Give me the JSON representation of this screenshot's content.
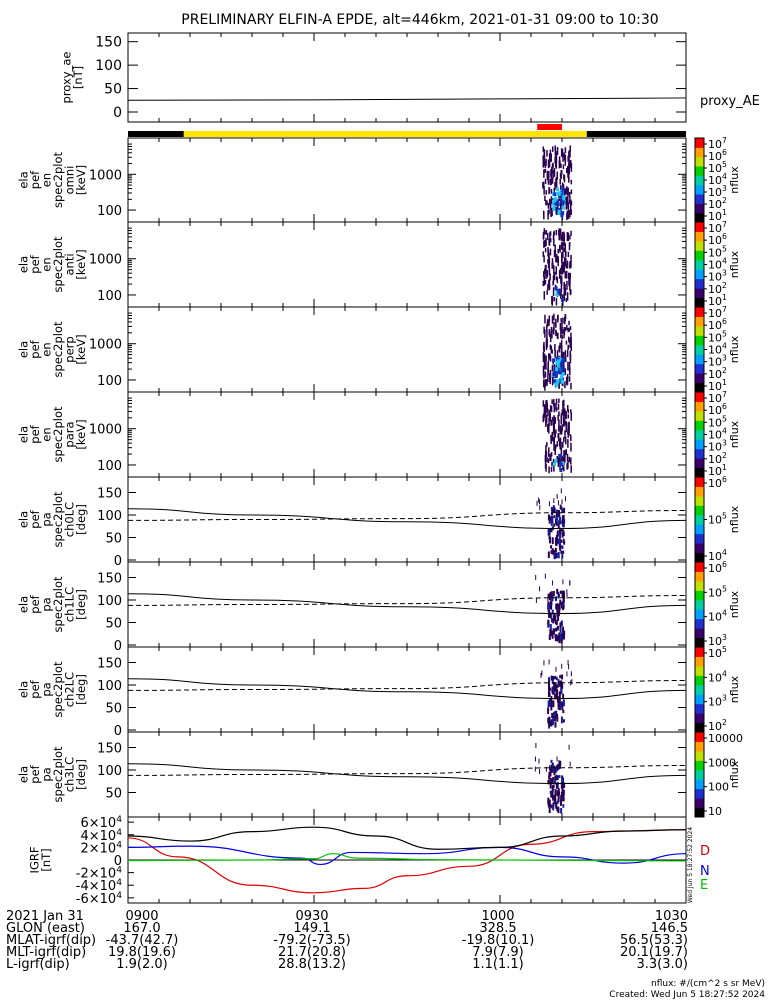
{
  "title": "PRELIMINARY ELFIN-A EPDE, alt=446km, 2021-01-31 09:00 to 10:30",
  "colors": {
    "axis": "#000000",
    "status_black": "#000000",
    "status_yellow": "#FFE400",
    "status_red": "#FF0000",
    "igrf_d": "#E00000",
    "igrf_n": "#0000E0",
    "igrf_e": "#00C000",
    "igrf_total": "#000000",
    "spec_dark": "#2A0050",
    "spec_mid": "#1030C0",
    "spec_light": "#20C8F0"
  },
  "chart_data": {
    "type": "multi-panel",
    "time_range": [
      "2021-01-31 09:00",
      "2021-01-31 10:30"
    ],
    "xticks": [
      "0900",
      "0930",
      "1000",
      "1030"
    ],
    "panels": [
      {
        "id": "proxy_ae",
        "type": "line",
        "ylabel": "proxy_ae\n[nT]",
        "yticks": [
          "0",
          "50",
          "100",
          "150"
        ],
        "ylim": [
          0,
          160
        ],
        "legend": "proxy_AE",
        "series": [
          {
            "name": "proxy_AE",
            "t": [
              0,
              30,
              60,
              90
            ],
            "values": [
              25,
              26,
              28,
              30
            ]
          }
        ]
      },
      {
        "id": "status_bar",
        "type": "bar",
        "segments": [
          {
            "t0": 0,
            "t1": 9,
            "color": "black"
          },
          {
            "t0": 9,
            "t1": 74,
            "color": "yellow"
          },
          {
            "t0": 74,
            "t1": 90,
            "color": "black"
          },
          {
            "t0": 66,
            "t1": 70,
            "color": "red"
          }
        ]
      },
      {
        "id": "en_omni",
        "type": "heatmap",
        "ylabel": "ela\npef\nen\nspec2plot\nomni\n[keV]",
        "yticks": [
          "100",
          "1000"
        ],
        "log": true,
        "cbar_ticks": [
          "10^1",
          "10^2",
          "10^3",
          "10^4",
          "10^5",
          "10^6",
          "10^7"
        ],
        "cbar_label": "nflux",
        "activity_minutes": [
          66.5,
          71.5
        ],
        "peak_flux": 100000.0
      },
      {
        "id": "en_anti",
        "type": "heatmap",
        "ylabel": "ela\npef\nen\nspec2plot\nanti\n[keV]",
        "yticks": [
          "100",
          "1000"
        ],
        "log": true,
        "cbar_ticks": [
          "10^1",
          "10^2",
          "10^3",
          "10^4",
          "10^5",
          "10^6",
          "10^7"
        ],
        "cbar_label": "nflux",
        "activity_minutes": [
          66.5,
          71.5
        ],
        "peak_flux": 1000.0
      },
      {
        "id": "en_perp",
        "type": "heatmap",
        "ylabel": "ela\npef\nen\nspec2plot\nperp\n[keV]",
        "yticks": [
          "100",
          "1000"
        ],
        "log": true,
        "cbar_ticks": [
          "10^1",
          "10^2",
          "10^3",
          "10^4",
          "10^5",
          "10^6",
          "10^7"
        ],
        "cbar_label": "nflux",
        "activity_minutes": [
          66.5,
          71.5
        ],
        "peak_flux": 100000.0
      },
      {
        "id": "en_para",
        "type": "heatmap",
        "ylabel": "ela\npef\nen\nspec2plot\npara\n[keV]",
        "yticks": [
          "100",
          "1000"
        ],
        "log": true,
        "cbar_ticks": [
          "10^1",
          "10^2",
          "10^3",
          "10^4",
          "10^5",
          "10^6",
          "10^7"
        ],
        "cbar_label": "nflux",
        "activity_minutes": [
          66.5,
          71.5
        ],
        "peak_flux": 1000.0
      },
      {
        "id": "pa_ch0",
        "type": "heatmap",
        "ylabel": "ela\npef\npa\nspec2plot\nch0LC\n[deg]",
        "yticks": [
          "0",
          "50",
          "100",
          "150"
        ],
        "ylim": [
          0,
          180
        ],
        "cbar_ticks": [
          "10^4",
          "10^5",
          "10^6"
        ],
        "cbar_label": "nflux",
        "lc_solid": [
          114,
          100,
          85,
          70,
          88
        ],
        "lc_dashed": [
          88,
          90,
          92,
          105,
          110
        ]
      },
      {
        "id": "pa_ch1",
        "type": "heatmap",
        "ylabel": "ela\npef\npa\nspec2plot\nch1LC\n[deg]",
        "yticks": [
          "0",
          "50",
          "100",
          "150"
        ],
        "ylim": [
          0,
          180
        ],
        "cbar_ticks": [
          "10^3",
          "10^4",
          "10^5",
          "10^6"
        ],
        "cbar_label": "nflux",
        "lc_solid": [
          114,
          100,
          85,
          70,
          88
        ],
        "lc_dashed": [
          88,
          90,
          92,
          105,
          110
        ]
      },
      {
        "id": "pa_ch2",
        "type": "heatmap",
        "ylabel": "ela\npef\npa\nspec2plot\nch2LC\n[deg]",
        "yticks": [
          "0",
          "50",
          "100",
          "150"
        ],
        "ylim": [
          0,
          180
        ],
        "cbar_ticks": [
          "10^2",
          "10^3",
          "10^4",
          "10^5"
        ],
        "cbar_label": "nflux",
        "lc_solid": [
          114,
          100,
          85,
          70,
          88
        ],
        "lc_dashed": [
          88,
          90,
          92,
          105,
          110
        ]
      },
      {
        "id": "pa_ch3",
        "type": "heatmap",
        "ylabel": "ela\npef\npa\nspec2plot\nch3LC\n[deg]",
        "yticks": [
          "50",
          "100",
          "150"
        ],
        "ylim": [
          0,
          180
        ],
        "cbar_ticks": [
          "10",
          "100",
          "1000",
          "10000"
        ],
        "cbar_label": "nflux",
        "lc_solid": [
          114,
          100,
          85,
          70,
          88
        ],
        "lc_dashed": [
          88,
          90,
          92,
          105,
          110
        ]
      },
      {
        "id": "igrf",
        "type": "line",
        "ylabel": "IGRF\n[nT]",
        "yticks": [
          "-6x10^4",
          "-4x10^4",
          "-2x10^4",
          "0",
          "2x10^4",
          "4x10^4",
          "6x10^4"
        ],
        "ylim": [
          -65000,
          65000
        ],
        "legend": [
          "D",
          "N",
          "E"
        ],
        "series": [
          {
            "name": "D",
            "t": [
              0,
              8,
              20,
              30,
              38,
              45,
              55,
              65,
              75,
              90
            ],
            "values": [
              35000,
              5000,
              -40000,
              -52000,
              -45000,
              -25000,
              -10000,
              25000,
              45000,
              48000
            ]
          },
          {
            "name": "N",
            "t": [
              0,
              10,
              28,
              31,
              36,
              48,
              60,
              70,
              80,
              90
            ],
            "values": [
              20000,
              22000,
              3000,
              -7000,
              12000,
              10000,
              20000,
              5000,
              -5000,
              10000
            ]
          },
          {
            "name": "E",
            "t": [
              0,
              20,
              30,
              33,
              37,
              50,
              60,
              70,
              80,
              90
            ],
            "values": [
              -1000,
              0,
              2000,
              10000,
              3000,
              500,
              0,
              -500,
              -1000,
              -1500
            ]
          },
          {
            "name": "",
            "t": [
              0,
              10,
              20,
              30,
              40,
              50,
              60,
              70,
              80,
              90
            ],
            "values": [
              38000,
              30000,
              45000,
              52000,
              38000,
              17000,
              20000,
              38000,
              46000,
              48000
            ]
          }
        ]
      }
    ],
    "ephemeris": {
      "labels": [
        "2021 Jan 31",
        "GLON (east)",
        "MLAT-igrf(dip)",
        "MLT-igrf(dip)",
        "L-igrf(dip)"
      ],
      "values": [
        [
          "0900",
          "0930",
          "1000",
          "1030"
        ],
        [
          "167.0",
          "149.1",
          "328.5",
          "146.5"
        ],
        [
          "-43.7(42.7)",
          "-79.2(-73.5)",
          "-19.8(10.1)",
          "56.5(53.3)"
        ],
        [
          "19.8(19.6)",
          "21.7(20.8)",
          "7.9(7.9)",
          "20.1(19.7)"
        ],
        [
          "1.9(2.0)",
          "28.8(13.2)",
          "1.1(1.1)",
          "3.3(3.0)"
        ]
      ]
    },
    "footer": [
      "nflux: #/(cm^2 s sr MeV)",
      "Created: Wed Jun  5 18:27:52 2024"
    ],
    "side_stamp": "Wed Jun  5 18:27:52 2024"
  }
}
